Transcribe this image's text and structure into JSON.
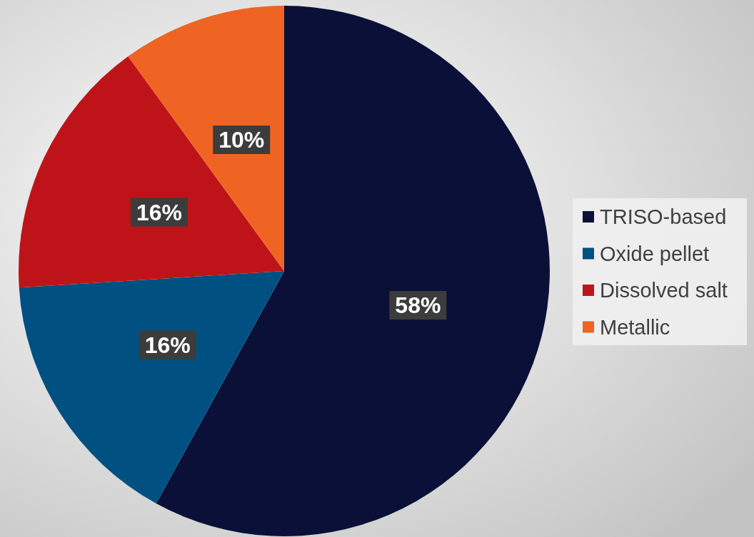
{
  "chart_data": {
    "type": "pie",
    "categories": [
      "TRISO-based",
      "Oxide pellet",
      "Dissolved salt",
      "Metallic"
    ],
    "values": [
      58,
      16,
      16,
      10
    ],
    "colors": [
      "#0b1038",
      "#005082",
      "#be1419",
      "#f06423"
    ],
    "value_labels": [
      "58%",
      "16%",
      "16%",
      "10%"
    ],
    "legend": "right"
  }
}
